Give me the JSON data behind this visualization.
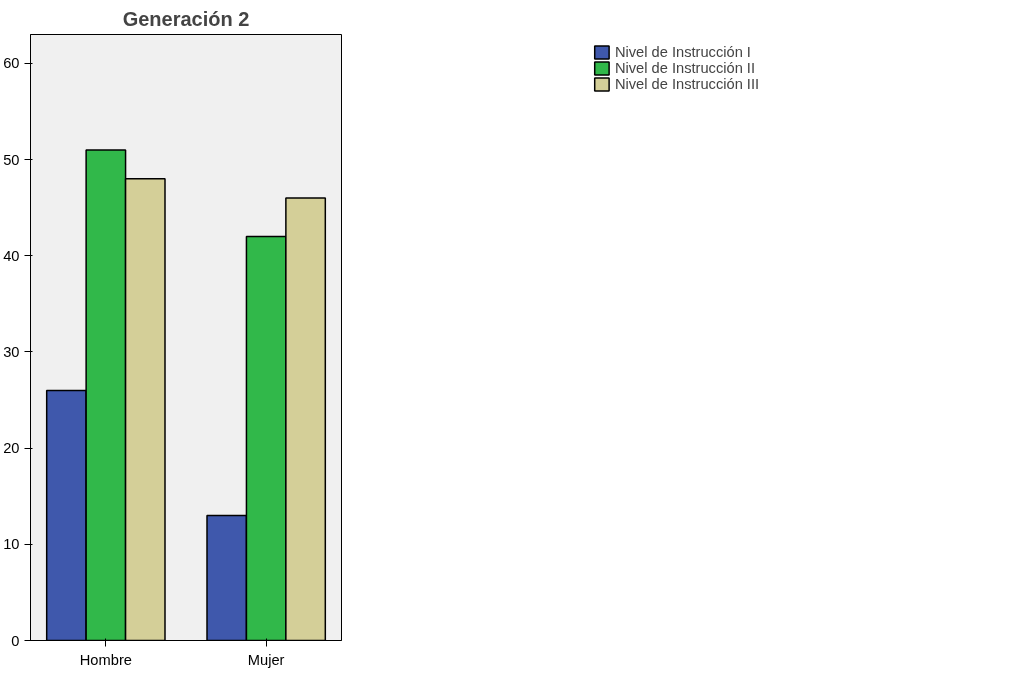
{
  "chart_data": {
    "type": "bar",
    "title": "Generación 2",
    "categories": [
      "Hombre",
      "Mujer"
    ],
    "series": [
      {
        "name": "Nivel de Instrucción I",
        "color": "#3f58ac",
        "values": [
          26,
          13
        ]
      },
      {
        "name": "Nivel de Instrucción II",
        "color": "#31b84a",
        "values": [
          51,
          42
        ]
      },
      {
        "name": "Nivel de Instrucción III",
        "color": "#d4cf98",
        "values": [
          48,
          46
        ]
      }
    ],
    "ylim": [
      0,
      63
    ],
    "yticks": [
      0,
      10,
      20,
      30,
      40,
      50,
      60
    ],
    "grid": false,
    "legend": "right"
  }
}
